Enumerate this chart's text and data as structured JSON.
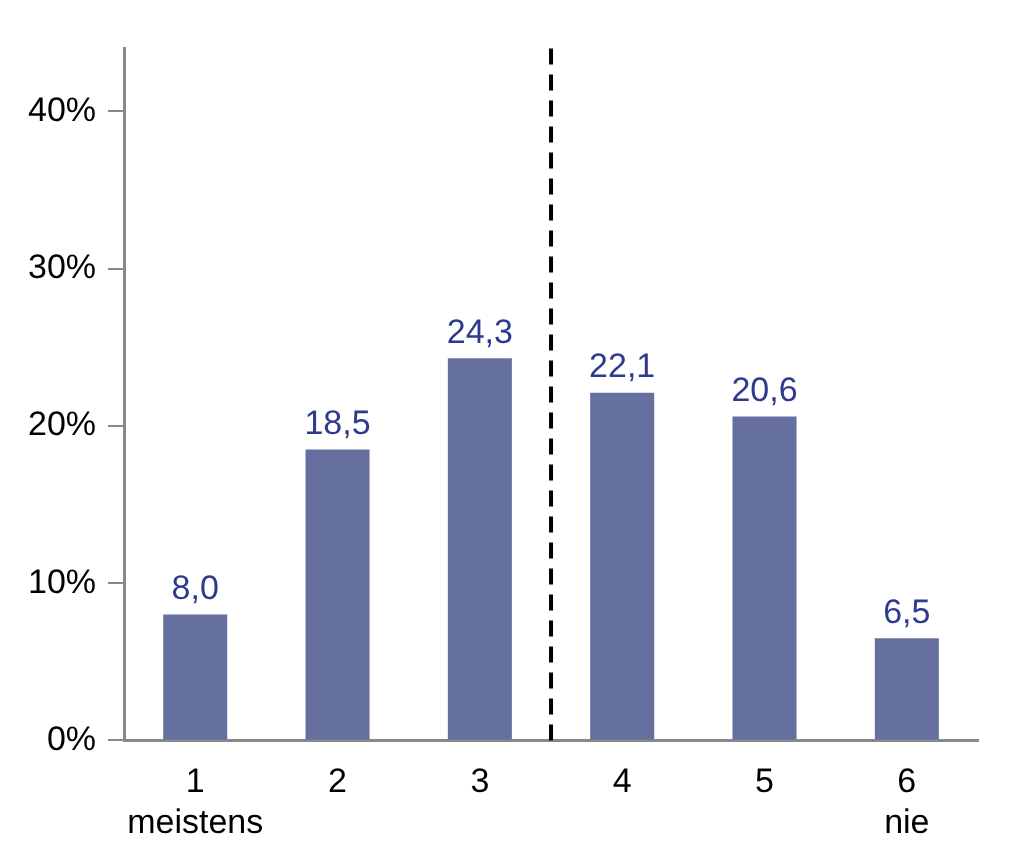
{
  "chart_data": {
    "type": "bar",
    "x": [
      1,
      2,
      3,
      4,
      5,
      6
    ],
    "values": [
      8.0,
      18.5,
      24.3,
      22.1,
      20.6,
      6.5
    ],
    "color": "#6670a0",
    "value_labels": [
      "8,0",
      "18,5",
      "24,3",
      "22,1",
      "20,6",
      "6,5"
    ],
    "xlim": [
      0.5,
      6.5
    ],
    "xticks": [
      {
        "value": 1,
        "label": "1\nmeistens"
      },
      {
        "value": 2,
        "label": "2"
      },
      {
        "value": 3,
        "label": "3"
      },
      {
        "value": 4,
        "label": "4"
      },
      {
        "value": 5,
        "label": "5"
      },
      {
        "value": 6,
        "label": "6\nnie"
      }
    ],
    "ylim": [
      0,
      44
    ],
    "yticks": [
      {
        "value": 0,
        "label": "0%"
      },
      {
        "value": 10,
        "label": "10%"
      },
      {
        "value": 20,
        "label": "20%"
      },
      {
        "value": 30,
        "label": "30%"
      },
      {
        "value": 40,
        "label": "40%"
      }
    ],
    "ref_lines": [
      {
        "axis": "x",
        "value": 3.5,
        "color": "#000000",
        "line_style": "dashed"
      }
    ],
    "grid": false,
    "legend": false
  }
}
